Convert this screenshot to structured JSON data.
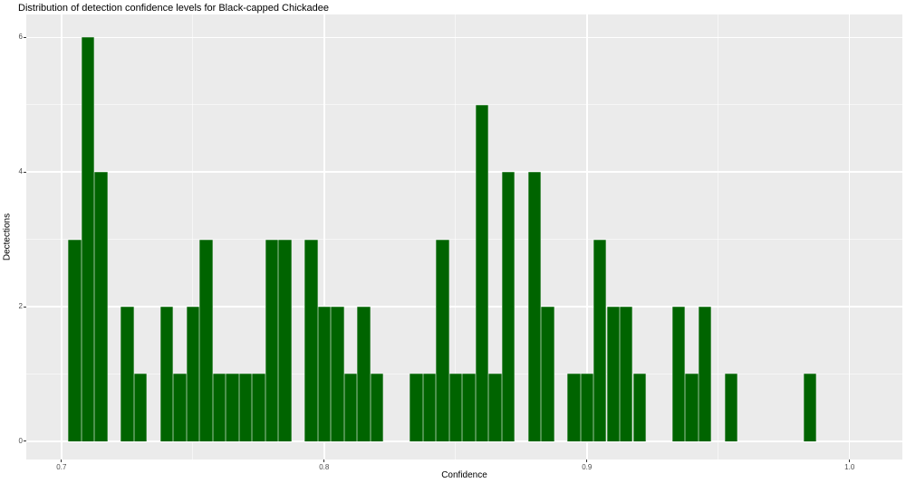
{
  "chart": {
    "title": "Distribution of detection confidence levels for Black-capped Chickadee",
    "xlabel": "Confidence",
    "ylabel": "Dectections",
    "panel_bg": "#EBEBEB",
    "grid_major_color": "#FFFFFF",
    "grid_minor_color": "rgba(255,255,255,0.55)",
    "bar_color": "#006400",
    "tick_mark_color": "#333333",
    "tick_label_color": "#4d4d4d"
  },
  "chart_data": {
    "type": "bar",
    "subtype": "histogram",
    "title": "Distribution of detection confidence levels for Black-capped Chickadee",
    "xlabel": "Confidence",
    "ylabel": "Dectections",
    "bin_width": 0.005,
    "bin_centers": [
      0.705,
      0.71,
      0.715,
      0.72,
      0.725,
      0.73,
      0.735,
      0.74,
      0.745,
      0.75,
      0.755,
      0.76,
      0.765,
      0.77,
      0.775,
      0.78,
      0.785,
      0.79,
      0.795,
      0.8,
      0.805,
      0.81,
      0.815,
      0.82,
      0.825,
      0.83,
      0.835,
      0.84,
      0.845,
      0.85,
      0.855,
      0.86,
      0.865,
      0.87,
      0.875,
      0.88,
      0.885,
      0.89,
      0.895,
      0.9,
      0.905,
      0.91,
      0.915,
      0.92,
      0.925,
      0.93,
      0.935,
      0.94,
      0.945,
      0.95,
      0.955,
      0.96,
      0.965,
      0.97,
      0.975,
      0.98,
      0.985
    ],
    "counts": [
      3,
      6,
      4,
      0,
      2,
      1,
      0,
      2,
      1,
      2,
      3,
      1,
      1,
      1,
      1,
      3,
      3,
      0,
      3,
      2,
      2,
      1,
      2,
      1,
      0,
      0,
      1,
      1,
      3,
      1,
      1,
      5,
      1,
      4,
      0,
      4,
      2,
      0,
      1,
      1,
      3,
      2,
      2,
      1,
      0,
      0,
      2,
      1,
      2,
      0,
      1,
      0,
      0,
      0,
      0,
      0,
      1
    ],
    "x_ticks": [
      0.7,
      0.8,
      0.9,
      1.0
    ],
    "x_tick_labels": [
      "0.7",
      "0.8",
      "0.9",
      "1.0"
    ],
    "x_minor_ticks": [
      0.75,
      0.85,
      0.95
    ],
    "y_ticks": [
      0,
      2,
      4,
      6
    ],
    "y_tick_labels": [
      "0",
      "2",
      "4",
      "6"
    ],
    "y_minor_ticks": [
      1,
      3,
      5
    ],
    "xlim": [
      0.6866,
      1.0201
    ],
    "ylim": [
      -0.27,
      6.34
    ],
    "grid": true,
    "legend": false
  }
}
